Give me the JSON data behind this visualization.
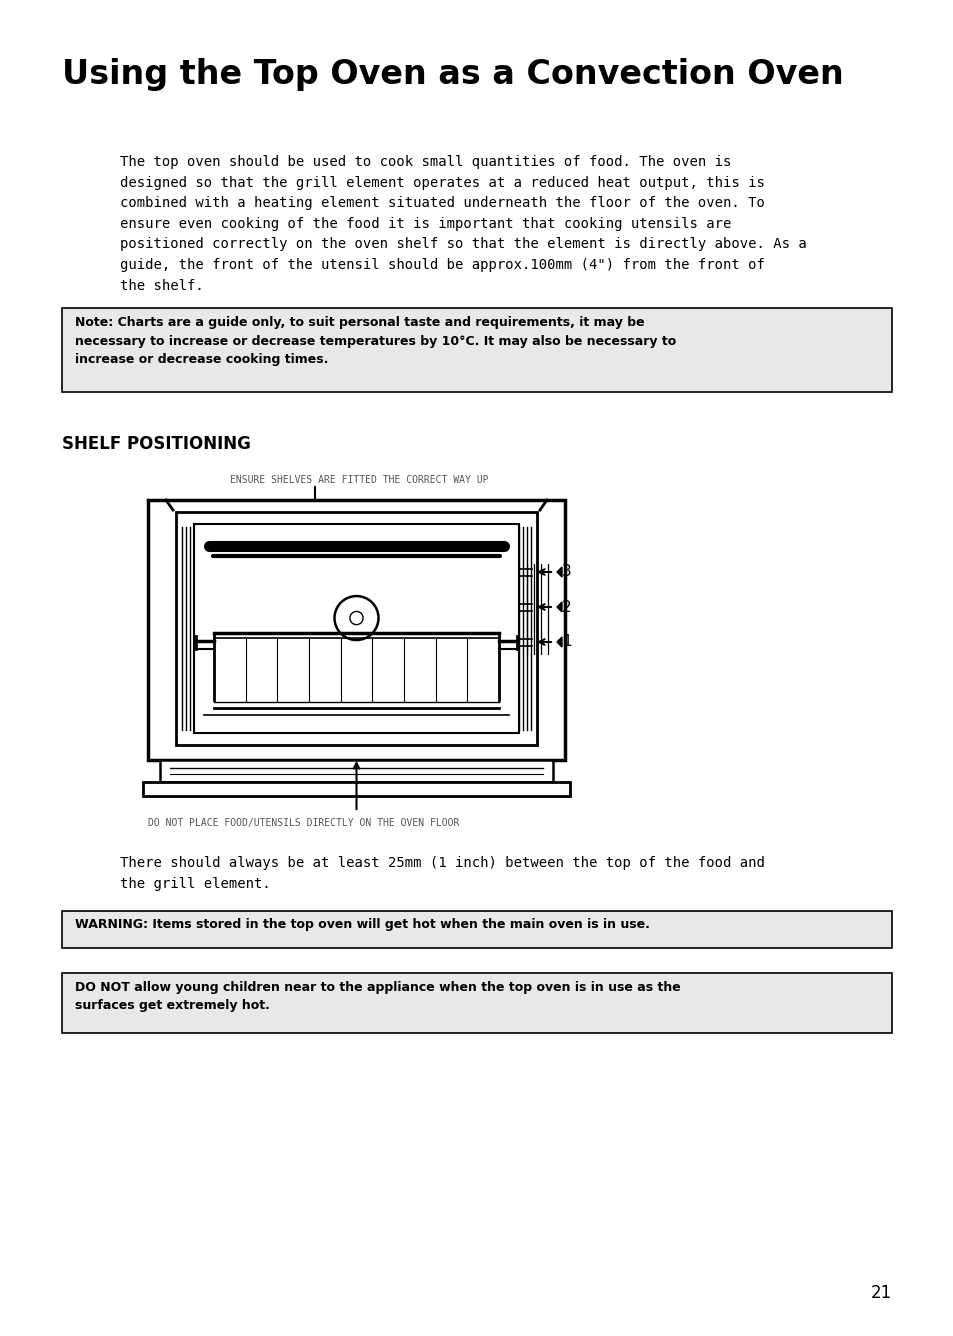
{
  "title": "Using the Top Oven as a Convection Oven",
  "body_text": "The top oven should be used to cook small quantities of food. The oven is\ndesigned so that the grill element operates at a reduced heat output, this is\ncombined with a heating element situated underneath the floor of the oven. To\nensure even cooking of the food it is important that cooking utensils are\npositioned correctly on the oven shelf so that the element is directly above. As a\nguide, the front of the utensil should be approx.100mm (4\") from the front of\nthe shelf.",
  "note_text": "Note: Charts are a guide only, to suit personal taste and requirements, it may be\nnecessary to increase or decrease temperatures by 10°C. It may also be necessary to\nincrease or decrease cooking times.",
  "shelf_heading": "SHELF POSITIONING",
  "caption_top": "ENSURE SHELVES ARE FITTED THE CORRECT WAY UP",
  "caption_bottom": "DO NOT PLACE FOOD/UTENSILS DIRECTLY ON THE OVEN FLOOR",
  "after_diagram_text": "There should always be at least 25mm (1 inch) between the top of the food and\nthe grill element.",
  "warning_text": "WARNING: Items stored in the top oven will get hot when the main oven is in use.",
  "do_not_text": "DO NOT allow young children near to the appliance when the top oven is in use as the\nsurfaces get extremely hot.",
  "page_number": "21",
  "bg_color": "#ffffff",
  "box_bg_color": "#e8e8e8",
  "box_border_color": "#000000",
  "text_color": "#000000"
}
